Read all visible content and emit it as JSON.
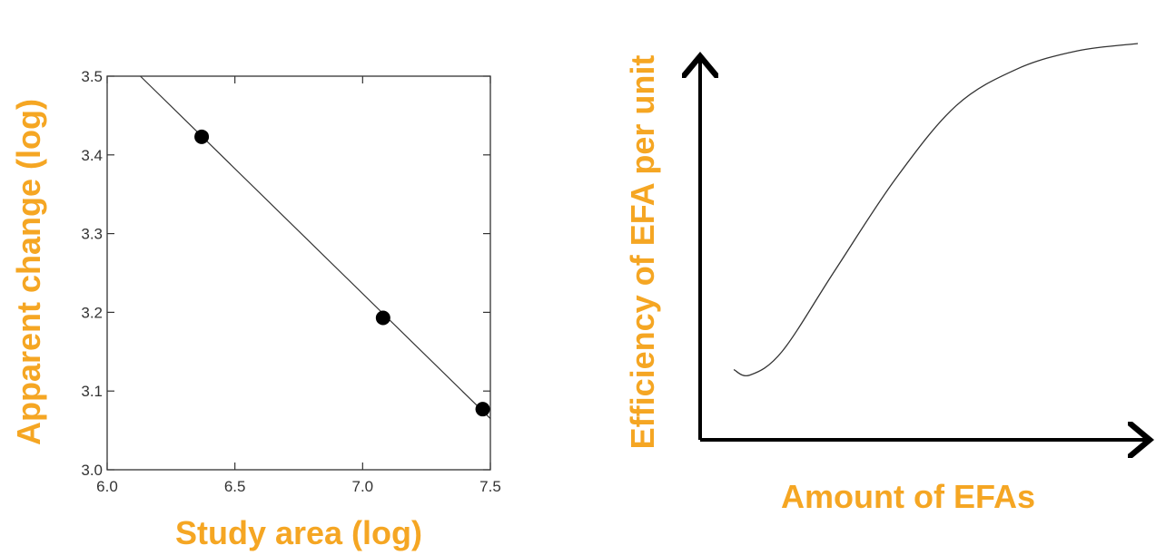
{
  "colors": {
    "label_orange": "#f5a623",
    "line": "#333333",
    "marker": "#000000"
  },
  "chart_data": [
    {
      "type": "scatter",
      "title": "",
      "xlabel": "Study area (log)",
      "ylabel": "Apparent change (log)",
      "xlim": [
        6.0,
        7.5
      ],
      "ylim": [
        3.0,
        3.5
      ],
      "x_ticks": [
        "6.0",
        "6.5",
        "7.0",
        "7.5"
      ],
      "y_ticks": [
        "3.0",
        "3.1",
        "3.2",
        "3.3",
        "3.4",
        "3.5"
      ],
      "grid": false,
      "series": [
        {
          "x": [
            6.37,
            7.08,
            7.47
          ],
          "y": [
            3.423,
            3.193,
            3.077
          ]
        }
      ],
      "fit_line": {
        "x": [
          6.13,
          7.5
        ],
        "y": [
          3.5,
          3.065
        ]
      }
    },
    {
      "type": "line",
      "title": "",
      "xlabel": "Amount of EFAs",
      "ylabel": "Efficiency of EFA per unit",
      "grid": false,
      "series": [
        {
          "x": [
            0.0,
            0.04,
            0.12,
            0.25,
            0.4,
            0.55,
            0.7,
            0.85,
            1.0
          ],
          "y": [
            0.11,
            0.095,
            0.16,
            0.38,
            0.63,
            0.83,
            0.93,
            0.98,
            1.0
          ]
        }
      ]
    }
  ]
}
